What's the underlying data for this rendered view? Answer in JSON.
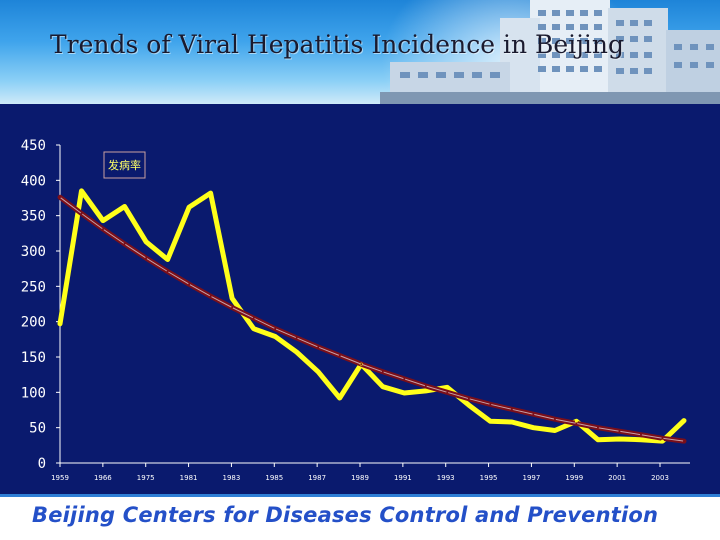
{
  "slide": {
    "title": "Trends of Viral Hepatitis Incidence in Beijing",
    "footer": "Beijing Centers for Diseases Control and Prevention"
  },
  "colors": {
    "plot_background": "#0a1a6e",
    "series_line": "#ffff1a",
    "trend_line": "#7a0f1a",
    "footer_text": "#2450c8"
  },
  "chart_data": {
    "type": "line",
    "title": "",
    "xlabel": "",
    "ylabel": "",
    "ylim": [
      0,
      450
    ],
    "yticks": [
      0,
      50,
      100,
      150,
      200,
      250,
      300,
      350,
      400,
      450
    ],
    "xtick_labels": [
      "1959",
      "1966",
      "1975",
      "1981",
      "1983",
      "1985",
      "1987",
      "1989",
      "1991",
      "1993",
      "1995",
      "1997",
      "1999",
      "2001",
      "2003"
    ],
    "grid": false,
    "legend": {
      "position": "top-left",
      "label": "发病率"
    },
    "series": [
      {
        "name": "发病率",
        "style": "thick-yellow",
        "values": [
          197,
          385,
          343,
          363,
          313,
          288,
          362,
          382,
          233,
          190,
          179,
          157,
          129,
          92,
          140,
          108,
          99,
          102,
          107,
          82,
          59,
          58,
          50,
          46,
          59,
          33,
          34,
          33,
          31,
          60
        ]
      },
      {
        "name": "",
        "style": "trend",
        "values": [
          376,
          353,
          331,
          310,
          290,
          271,
          253,
          236,
          220,
          205,
          190,
          177,
          164,
          152,
          140,
          129,
          119,
          109,
          100,
          91,
          83,
          76,
          69,
          62,
          56,
          50,
          45,
          40,
          35,
          31
        ]
      }
    ]
  }
}
